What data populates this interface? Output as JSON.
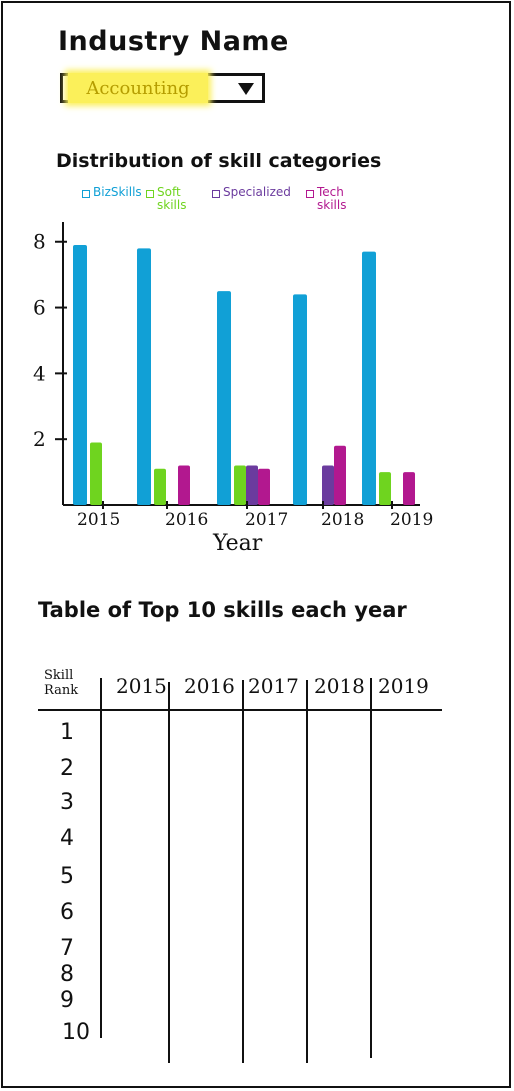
{
  "header": {
    "title": "Industry Name"
  },
  "industry_select": {
    "selected": "Accounting"
  },
  "chart_data": {
    "type": "bar",
    "title": "Distribution of skill categories",
    "xlabel": "Year",
    "ylabel": "",
    "categories": [
      "2015",
      "2016",
      "2017",
      "2018",
      "2019"
    ],
    "yticks": [
      2,
      4,
      6,
      8
    ],
    "ylim": [
      0,
      8.6
    ],
    "grid": false,
    "legend_position": "top",
    "series": [
      {
        "name": "BizSkills",
        "color": "#11a0d6",
        "values": [
          7.9,
          7.8,
          6.5,
          6.4,
          7.7
        ]
      },
      {
        "name": "Soft skills",
        "color": "#6fd41f",
        "values": [
          1.9,
          1.1,
          1.2,
          0,
          1.0
        ]
      },
      {
        "name": "Specialized",
        "color": "#6b3b9e",
        "values": [
          0,
          0,
          1.2,
          1.2,
          0
        ]
      },
      {
        "name": "Tech skills",
        "color": "#b2188f",
        "values": [
          0,
          1.2,
          1.1,
          1.8,
          1.0
        ]
      }
    ]
  },
  "table": {
    "title": "Table of Top 10 skills each year",
    "rank_header": "Skill Rank",
    "years": [
      "2015",
      "2016",
      "2017",
      "2018",
      "2019"
    ],
    "ranks": [
      "1",
      "2",
      "3",
      "4",
      "5",
      "6",
      "7",
      "8",
      "9",
      "10"
    ]
  }
}
